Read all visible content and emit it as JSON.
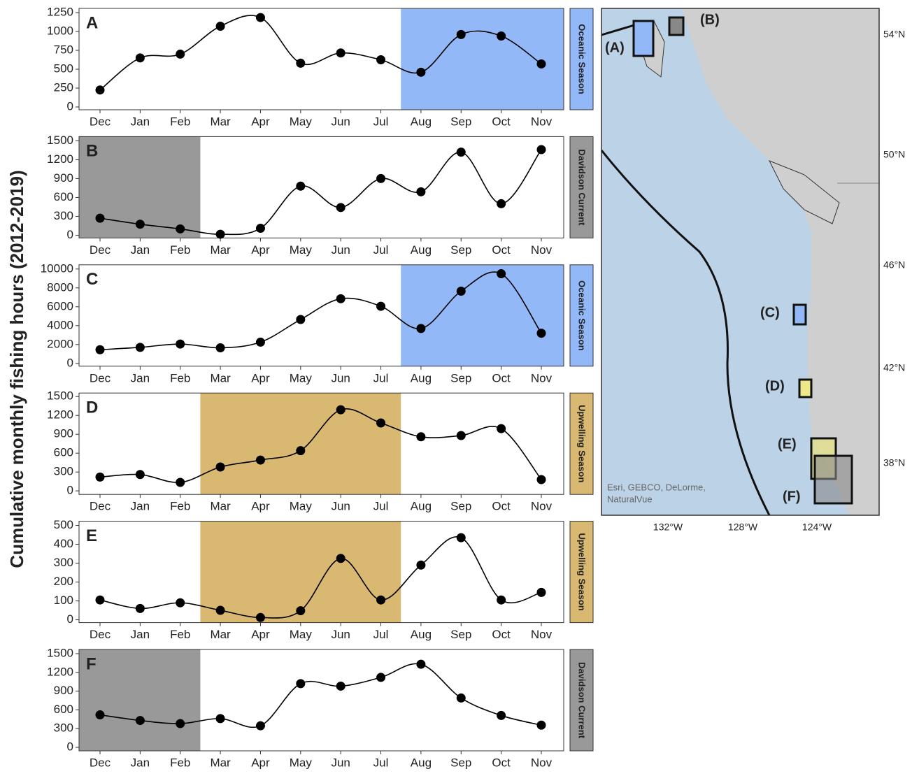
{
  "ylabel": "Cumulative monthly fishing hours (2012-2019)",
  "chart_data": [
    {
      "type": "line",
      "panel": "A",
      "strip": "Oceanic Season",
      "strip_color": "#92b8f8",
      "shade": [
        "Aug",
        "Nov"
      ],
      "color": "#000000",
      "categories": [
        "Dec",
        "Jan",
        "Feb",
        "Mar",
        "Apr",
        "May",
        "Jun",
        "Jul",
        "Aug",
        "Sep",
        "Oct",
        "Nov"
      ],
      "values": [
        225,
        650,
        700,
        1070,
        1185,
        580,
        715,
        625,
        460,
        960,
        940,
        570
      ],
      "ylim": [
        -37,
        1306
      ],
      "yticks": [
        0,
        250,
        500,
        750,
        1000,
        1250
      ]
    },
    {
      "type": "line",
      "panel": "B",
      "strip": "Davidson Current",
      "strip_color": "#999999",
      "shade": [
        "Dec",
        "Feb"
      ],
      "color": "#000000",
      "categories": [
        "Dec",
        "Jan",
        "Feb",
        "Mar",
        "Apr",
        "May",
        "Jun",
        "Jul",
        "Aug",
        "Sep",
        "Oct",
        "Nov"
      ],
      "values": [
        270,
        175,
        100,
        15,
        110,
        780,
        440,
        900,
        690,
        1320,
        500,
        1360
      ],
      "ylim": [
        -44,
        1567
      ],
      "yticks": [
        0,
        300,
        600,
        900,
        1200,
        1500
      ]
    },
    {
      "type": "line",
      "panel": "C",
      "strip": "Oceanic Season",
      "strip_color": "#92b8f8",
      "shade": [
        "Aug",
        "Nov"
      ],
      "color": "#000000",
      "categories": [
        "Dec",
        "Jan",
        "Feb",
        "Mar",
        "Apr",
        "May",
        "Jun",
        "Jul",
        "Aug",
        "Sep",
        "Oct",
        "Nov"
      ],
      "values": [
        1450,
        1700,
        2050,
        1650,
        2250,
        4650,
        6850,
        6050,
        3700,
        7650,
        9500,
        3200
      ],
      "ylim": [
        -296,
        10444
      ],
      "yticks": [
        0,
        2000,
        4000,
        6000,
        8000,
        10000
      ]
    },
    {
      "type": "line",
      "panel": "D",
      "strip": "Upwelling Season",
      "strip_color": "#d9b872",
      "shade": [
        "Mar",
        "Jul"
      ],
      "color": "#000000",
      "categories": [
        "Dec",
        "Jan",
        "Feb",
        "Mar",
        "Apr",
        "May",
        "Jun",
        "Jul",
        "Aug",
        "Sep",
        "Oct",
        "Nov"
      ],
      "values": [
        220,
        260,
        135,
        380,
        490,
        640,
        1290,
        1080,
        860,
        880,
        990,
        180
      ],
      "ylim": [
        -56,
        1556
      ],
      "yticks": [
        0,
        300,
        600,
        900,
        1200,
        1500
      ]
    },
    {
      "type": "line",
      "panel": "E",
      "strip": "Upwelling Season",
      "strip_color": "#d9b872",
      "shade": [
        "Mar",
        "Jul"
      ],
      "color": "#000000",
      "categories": [
        "Dec",
        "Jan",
        "Feb",
        "Mar",
        "Apr",
        "May",
        "Jun",
        "Jul",
        "Aug",
        "Sep",
        "Oct",
        "Nov"
      ],
      "values": [
        105,
        60,
        90,
        50,
        12,
        48,
        325,
        105,
        290,
        435,
        105,
        145
      ],
      "ylim": [
        -15,
        522
      ],
      "yticks": [
        0,
        100,
        200,
        300,
        400,
        500
      ]
    },
    {
      "type": "line",
      "panel": "F",
      "strip": "Davidson Current",
      "strip_color": "#999999",
      "shade": [
        "Dec",
        "Feb"
      ],
      "color": "#000000",
      "categories": [
        "Dec",
        "Jan",
        "Feb",
        "Mar",
        "Apr",
        "May",
        "Jun",
        "Jul",
        "Aug",
        "Sep",
        "Oct",
        "Nov"
      ],
      "values": [
        520,
        430,
        380,
        460,
        345,
        1020,
        980,
        1120,
        1330,
        790,
        510,
        355
      ],
      "ylim": [
        -56,
        1567
      ],
      "yticks": [
        0,
        300,
        600,
        900,
        1200,
        1500
      ]
    }
  ],
  "map": {
    "boxes": [
      "(A)",
      "(B)",
      "(C)",
      "(D)",
      "(E)",
      "(F)"
    ],
    "lat_labels": [
      "54°N",
      "50°N",
      "46°N",
      "42°N",
      "38°N"
    ],
    "lon_labels": [
      "132°W",
      "128°W",
      "124°W"
    ],
    "credit": [
      "Esri, GEBCO, DeLorme,",
      "NaturalVue"
    ]
  }
}
